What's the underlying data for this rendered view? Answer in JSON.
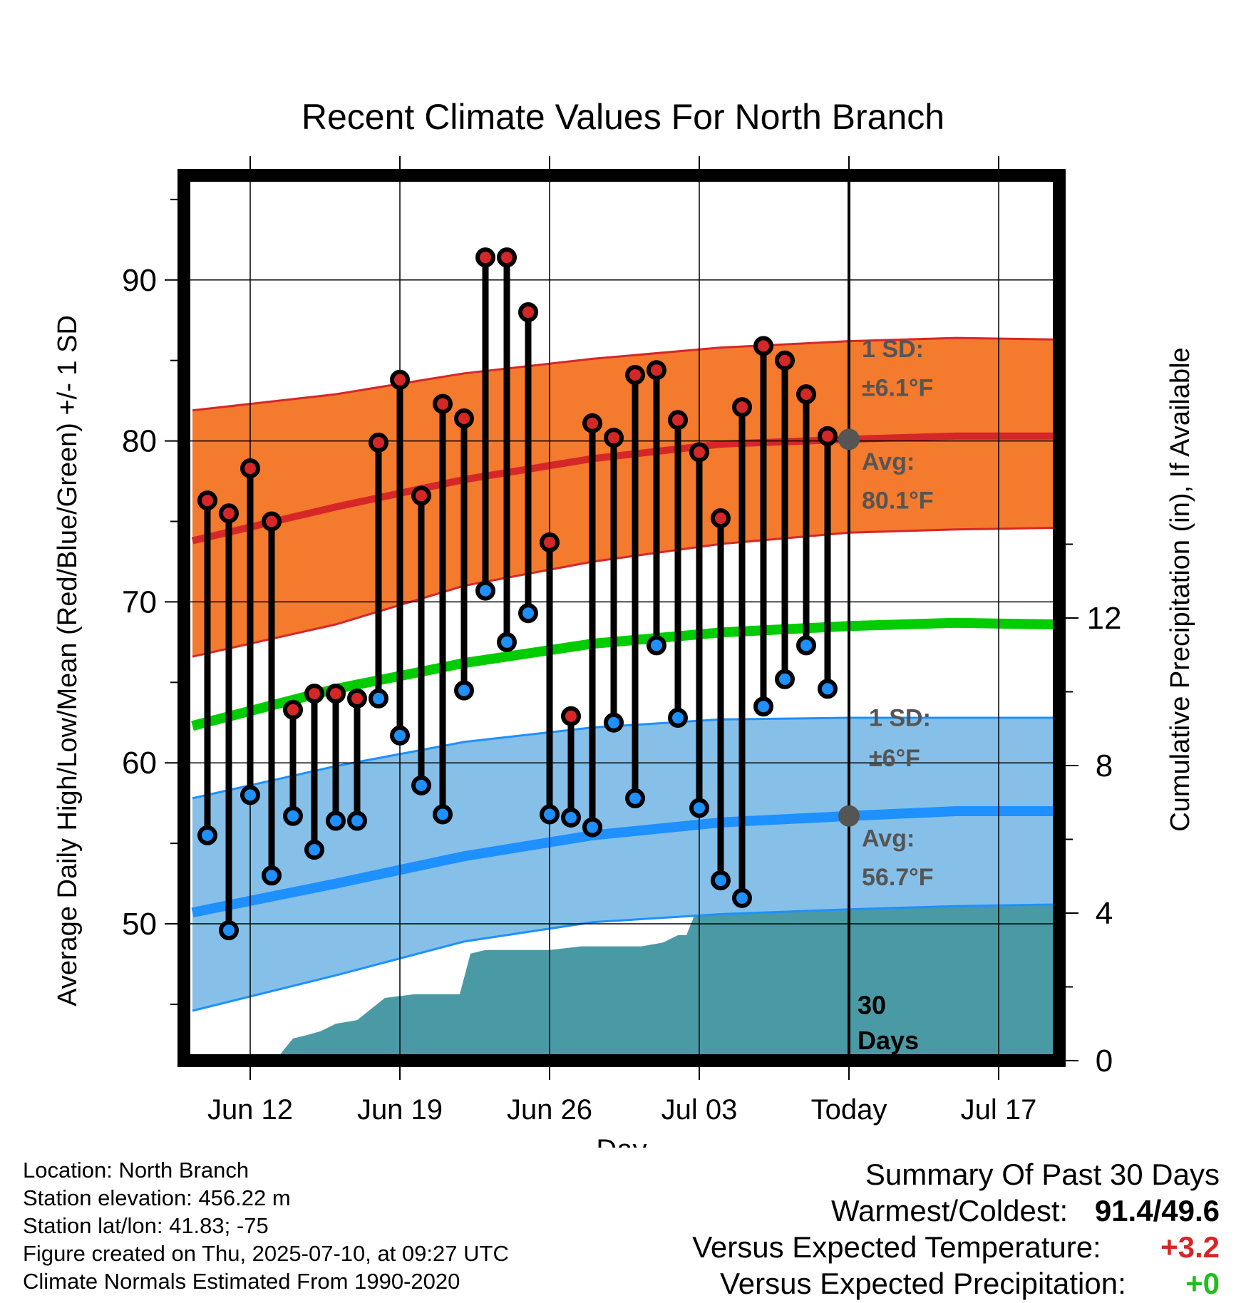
{
  "chart_data": {
    "type": "line",
    "title": "Recent Climate Values For North Branch",
    "xlabel": "Day",
    "ylabel": "Average Daily High/Low/Mean (Red/Blue/Green) +/- 1 SD",
    "y2label": "Cumulative Precipitation (in), If Available",
    "x_ticks": [
      "Jun 12",
      "Jun 19",
      "Jun 26",
      "Jul 03",
      "Today",
      "Jul 17"
    ],
    "x_tick_days": [
      0,
      7,
      14,
      21,
      28,
      35
    ],
    "xlim": [
      -3.2,
      37.6
    ],
    "ylim": [
      41.5,
      96.5
    ],
    "y_ticks": [
      50,
      60,
      70,
      80,
      90
    ],
    "y2lim": [
      0,
      24
    ],
    "y2_ticks": [
      0,
      4,
      8,
      12
    ],
    "grid": true,
    "days": [
      -2,
      -1,
      0,
      1,
      2,
      3,
      4,
      5,
      6,
      7,
      8,
      9,
      10,
      11,
      12,
      13,
      14,
      15,
      16,
      17,
      18,
      19,
      20,
      21,
      22,
      23,
      24,
      25,
      26,
      27
    ],
    "series": [
      {
        "name": "High",
        "color": "#d62728",
        "values": [
          76.3,
          75.5,
          78.3,
          75.0,
          63.3,
          64.3,
          64.3,
          64.0,
          79.9,
          83.8,
          76.6,
          82.3,
          81.4,
          91.4,
          91.4,
          88.0,
          73.7,
          62.9,
          81.1,
          80.2,
          84.1,
          84.4,
          81.3,
          79.3,
          75.2,
          82.1,
          85.9,
          85.0,
          82.9,
          80.3
        ]
      },
      {
        "name": "Low",
        "color": "#1e90ff",
        "values": [
          55.5,
          49.6,
          58.0,
          53.0,
          56.7,
          54.6,
          56.4,
          56.4,
          64.0,
          61.7,
          58.6,
          56.8,
          64.5,
          70.7,
          67.5,
          69.3,
          56.8,
          56.6,
          56.0,
          62.5,
          57.8,
          67.3,
          62.8,
          57.2,
          52.7,
          51.6,
          63.5,
          65.2,
          67.3,
          64.6
        ]
      }
    ],
    "normals": {
      "day_points": [
        -2.7,
        4,
        10,
        16,
        22,
        28,
        33,
        37.6
      ],
      "high_avg": [
        73.8,
        75.9,
        77.6,
        78.9,
        79.8,
        80.1,
        80.3,
        80.3
      ],
      "high_upper": [
        81.9,
        82.9,
        84.2,
        85.1,
        85.8,
        86.2,
        86.4,
        86.3
      ],
      "high_lower": [
        66.6,
        68.6,
        71.0,
        72.5,
        73.6,
        74.3,
        74.5,
        74.6
      ],
      "mean": [
        62.3,
        64.6,
        66.2,
        67.4,
        68.1,
        68.5,
        68.7,
        68.6
      ],
      "low_avg": [
        50.7,
        52.5,
        54.2,
        55.5,
        56.3,
        56.7,
        57.0,
        57.0
      ],
      "low_upper": [
        57.8,
        59.8,
        61.3,
        62.2,
        62.7,
        62.8,
        62.8,
        62.8
      ],
      "low_lower": [
        44.6,
        46.8,
        48.9,
        50.1,
        50.6,
        50.9,
        51.1,
        51.2
      ],
      "high_color": "#d62728",
      "high_band_color": "#f47a2e",
      "mean_color": "#00cc00",
      "low_color": "#1e90ff",
      "low_band_color": "#86c0e8"
    },
    "precipitation": {
      "color": "#4a9aa5",
      "days": [
        -2.7,
        -0.7,
        0.7,
        1.3,
        2,
        2.7,
        3.3,
        4,
        5,
        6.3,
        7.7,
        8.3,
        9.8,
        10.3,
        11,
        12.7,
        14,
        15.5,
        17,
        17.7,
        18.3,
        19.3,
        20,
        20.4,
        21.3,
        22.5,
        26.7,
        28,
        37.6
      ],
      "values": [
        0,
        0,
        0,
        0.1,
        0.6,
        0.7,
        0.8,
        1.0,
        1.1,
        1.7,
        1.8,
        1.8,
        1.8,
        2.9,
        3.0,
        3.0,
        3.0,
        3.1,
        3.1,
        3.1,
        3.1,
        3.2,
        3.4,
        3.4,
        4.7,
        4.7,
        4.7,
        4.8,
        4.8
      ]
    },
    "annotations": {
      "high_sd_label": "1 SD:",
      "high_sd_value": "±6.1°F",
      "high_avg_label": "Avg:",
      "high_avg_value": "80.1°F",
      "low_sd_label": "1 SD:",
      "low_sd_value": "±6°F",
      "low_avg_label": "Avg:",
      "low_avg_value": "56.7°F",
      "days_label_1": "30",
      "days_label_2": "Days",
      "today_day": 28,
      "today_high": 80.1,
      "today_low": 56.7
    }
  },
  "footer": {
    "location": "Location: North Branch",
    "elevation": "Station elevation: 456.22 m",
    "latlon": "Station lat/lon: 41.83; -75",
    "created": "Figure created on Thu, 2025-07-10, at 09:27 UTC",
    "normals": "Climate Normals Estimated From 1990-2020"
  },
  "summary": {
    "heading": "Summary Of Past 30 Days",
    "warmest_label": "Warmest/Coldest:",
    "warmest_value": "91.4/49.6",
    "temp_label": "Versus Expected Temperature:",
    "temp_value": "+3.2",
    "temp_color": "#d62728",
    "precip_label": "Versus Expected Precipitation:",
    "precip_value": "+0",
    "precip_color": "#1fbf1f"
  }
}
